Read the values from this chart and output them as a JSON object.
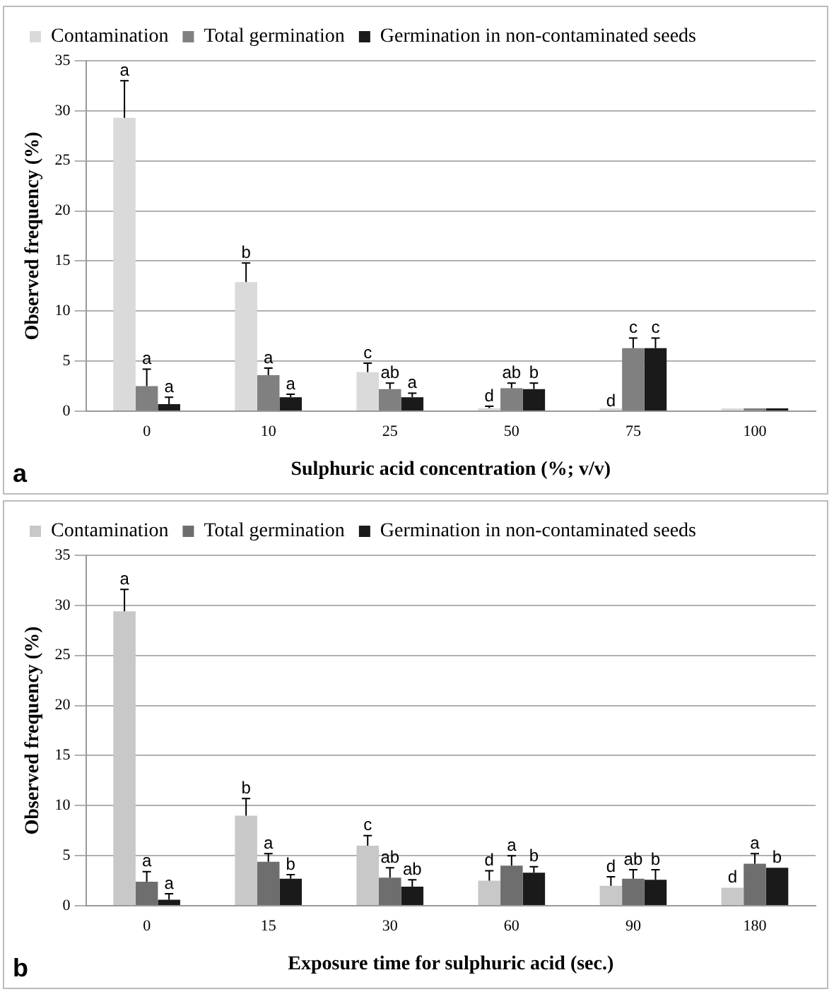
{
  "chart_data": [
    {
      "type": "bar",
      "xlabel": "Sulphuric acid concentration (%; v/v)",
      "ylabel": "Observed frequency (%)",
      "categories": [
        "0",
        "10",
        "25",
        "50",
        "75",
        "100"
      ],
      "series": [
        {
          "name": "Contamination",
          "color": "#dadada",
          "values": [
            29.3,
            12.9,
            3.9,
            0.3,
            0,
            0
          ],
          "errors": [
            3.7,
            1.9,
            0.9,
            0.2,
            null,
            null
          ],
          "value_labels": [
            "a",
            "b",
            "c",
            "d",
            "d",
            null
          ]
        },
        {
          "name": "Total germination",
          "color": "#808080",
          "values": [
            2.5,
            3.6,
            2.2,
            2.3,
            6.3,
            0
          ],
          "errors": [
            1.7,
            0.7,
            0.6,
            0.5,
            1.0,
            null
          ],
          "value_labels": [
            "a",
            "a",
            "ab",
            "ab",
            "c",
            null
          ]
        },
        {
          "name": "Germination in non-contaminated seeds",
          "color": "#1a1a1a",
          "values": [
            0.7,
            1.4,
            1.4,
            2.2,
            6.3,
            0
          ],
          "errors": [
            0.7,
            0.3,
            0.4,
            0.6,
            1.0,
            null
          ],
          "value_labels": [
            "a",
            "a",
            "a",
            "b",
            "c",
            null
          ]
        }
      ],
      "ylim": [
        0,
        35
      ],
      "yticks": [
        0,
        5,
        10,
        15,
        20,
        25,
        30,
        35
      ],
      "grid": "y",
      "legend": "top",
      "annotations": [
        "a"
      ]
    },
    {
      "type": "bar",
      "xlabel": "Exposure time for sulphuric acid (sec.)",
      "ylabel": "Observed frequency (%)",
      "categories": [
        "0",
        "15",
        "30",
        "60",
        "90",
        "180"
      ],
      "series": [
        {
          "name": "Contamination",
          "color": "#c8c8c8",
          "values": [
            29.4,
            9.0,
            6.0,
            2.5,
            2.0,
            1.8
          ],
          "errors": [
            2.2,
            1.7,
            1.0,
            1.0,
            0.9,
            null
          ],
          "value_labels": [
            "a",
            "b",
            "c",
            "d",
            "d",
            "d"
          ]
        },
        {
          "name": "Total germination",
          "color": "#6e6e6e",
          "values": [
            2.4,
            4.4,
            2.8,
            4.0,
            2.7,
            4.2
          ],
          "errors": [
            1.0,
            0.8,
            1.0,
            1.0,
            0.9,
            1.0
          ],
          "value_labels": [
            "a",
            "a",
            "ab",
            "a",
            "ab",
            "a"
          ]
        },
        {
          "name": "Germination in non-contaminated seeds",
          "color": "#1a1a1a",
          "values": [
            0.6,
            2.7,
            1.9,
            3.3,
            2.6,
            3.8
          ],
          "errors": [
            0.6,
            0.4,
            0.7,
            0.6,
            1.0,
            null
          ],
          "value_labels": [
            "a",
            "b",
            "ab",
            "b",
            "b",
            "b"
          ]
        }
      ],
      "ylim": [
        0,
        35
      ],
      "yticks": [
        0,
        5,
        10,
        15,
        20,
        25,
        30,
        35
      ],
      "grid": "y",
      "legend": "top",
      "annotations": [
        "b"
      ]
    }
  ]
}
